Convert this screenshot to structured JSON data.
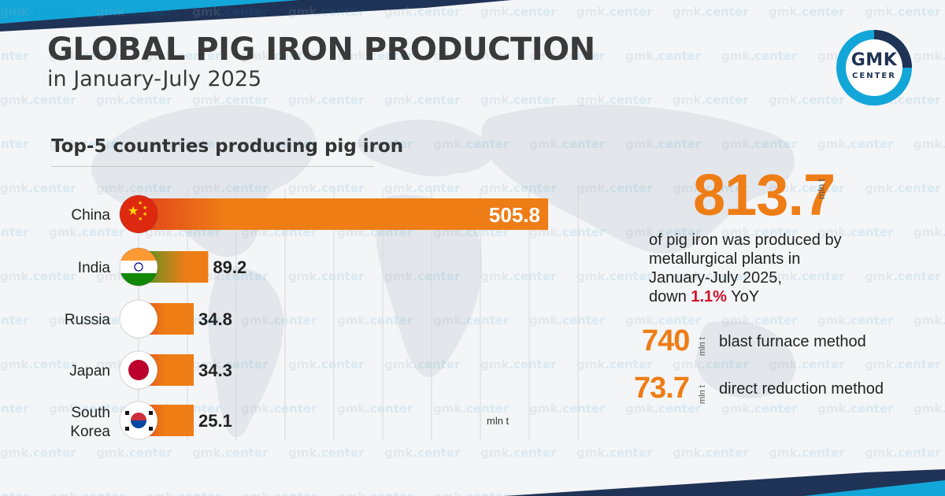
{
  "header": {
    "title": "GLOBAL PIG IRON PRODUCTION",
    "subtitle": "in January-July 2025"
  },
  "logo": {
    "line1": "GMK",
    "line2": "CENTER"
  },
  "watermark": {
    "text_a": "gmk",
    "text_b": ".center"
  },
  "colors": {
    "accent": "#ee7d16",
    "accent_dark": "#e2421b",
    "navy": "#1f3356",
    "teal": "#13a6d8",
    "negative": "#d0142a"
  },
  "chart_data": {
    "type": "bar",
    "orientation": "horizontal",
    "title": "Top-5 countries producing pig iron",
    "unit": "mln t",
    "categories": [
      "China",
      "India",
      "Russia",
      "Japan",
      "South Korea"
    ],
    "values": [
      505.8,
      89.2,
      34.8,
      34.3,
      25.1
    ],
    "value_labels": [
      "505.8",
      "89.2",
      "34.8",
      "34.3",
      "25.1"
    ],
    "flags": [
      "china-flag-icon",
      "india-flag-icon",
      "russia-flag-icon",
      "japan-flag-icon",
      "south-korea-flag-icon"
    ],
    "grid": true,
    "legend": "none"
  },
  "summary": {
    "total_value": "813.7",
    "total_unit": "mln t",
    "desc_line1": "of pig iron was produced by",
    "desc_line2": "metallurgical plants in",
    "desc_line3": "January-July 2025,",
    "desc_pre": "down ",
    "desc_change": "1.1%",
    "desc_post": " YoY"
  },
  "methods": [
    {
      "value": "740",
      "unit": "mln t",
      "label": "blast furnace method"
    },
    {
      "value": "73.7",
      "unit": "mln t",
      "label": "direct reduction method"
    }
  ]
}
